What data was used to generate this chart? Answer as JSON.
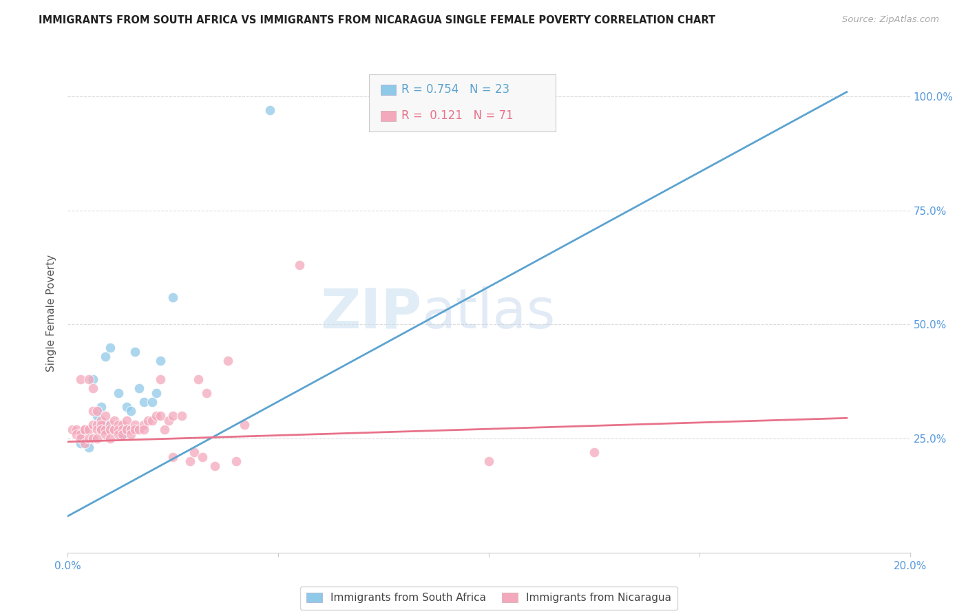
{
  "title": "IMMIGRANTS FROM SOUTH AFRICA VS IMMIGRANTS FROM NICARAGUA SINGLE FEMALE POVERTY CORRELATION CHART",
  "source": "Source: ZipAtlas.com",
  "ylabel": "Single Female Poverty",
  "xlim": [
    0.0,
    0.2
  ],
  "ylim": [
    0.0,
    1.05
  ],
  "xtick_labels": [
    "0.0%",
    "",
    "",
    "",
    "20.0%"
  ],
  "xtick_vals": [
    0.0,
    0.05,
    0.1,
    0.15,
    0.2
  ],
  "ytick_labels_right": [
    "100.0%",
    "75.0%",
    "50.0%",
    "25.0%"
  ],
  "ytick_vals": [
    1.0,
    0.75,
    0.5,
    0.25
  ],
  "watermark_zip": "ZIP",
  "watermark_atlas": "atlas",
  "blue_R": "0.754",
  "blue_N": "23",
  "pink_R": "0.121",
  "pink_N": "71",
  "legend_label_blue": "Immigrants from South Africa",
  "legend_label_pink": "Immigrants from Nicaragua",
  "blue_color": "#8fc9e8",
  "pink_color": "#f4a8bc",
  "blue_line_color": "#5ba3d0",
  "pink_line_color": "#e8728a",
  "title_color": "#222222",
  "axis_label_color": "#5599dd",
  "source_color": "#aaaaaa",
  "ylabel_color": "#555555",
  "blue_scatter_x": [
    0.003,
    0.005,
    0.006,
    0.007,
    0.008,
    0.009,
    0.009,
    0.01,
    0.011,
    0.012,
    0.012,
    0.013,
    0.013,
    0.014,
    0.015,
    0.016,
    0.017,
    0.018,
    0.02,
    0.021,
    0.022,
    0.025,
    0.048
  ],
  "blue_scatter_y": [
    0.24,
    0.23,
    0.38,
    0.3,
    0.32,
    0.28,
    0.43,
    0.45,
    0.27,
    0.27,
    0.35,
    0.27,
    0.26,
    0.32,
    0.31,
    0.44,
    0.36,
    0.33,
    0.33,
    0.35,
    0.42,
    0.56,
    0.97
  ],
  "pink_scatter_x": [
    0.001,
    0.002,
    0.002,
    0.003,
    0.003,
    0.003,
    0.004,
    0.004,
    0.004,
    0.005,
    0.005,
    0.005,
    0.006,
    0.006,
    0.006,
    0.006,
    0.007,
    0.007,
    0.007,
    0.007,
    0.008,
    0.008,
    0.008,
    0.008,
    0.009,
    0.009,
    0.009,
    0.01,
    0.01,
    0.01,
    0.011,
    0.011,
    0.011,
    0.012,
    0.012,
    0.012,
    0.013,
    0.013,
    0.013,
    0.014,
    0.014,
    0.014,
    0.015,
    0.015,
    0.016,
    0.016,
    0.017,
    0.018,
    0.018,
    0.019,
    0.02,
    0.021,
    0.022,
    0.022,
    0.023,
    0.024,
    0.025,
    0.025,
    0.027,
    0.029,
    0.03,
    0.031,
    0.032,
    0.033,
    0.035,
    0.038,
    0.04,
    0.042,
    0.055,
    0.1,
    0.125
  ],
  "pink_scatter_y": [
    0.27,
    0.27,
    0.26,
    0.26,
    0.25,
    0.38,
    0.27,
    0.27,
    0.24,
    0.38,
    0.27,
    0.25,
    0.36,
    0.31,
    0.28,
    0.25,
    0.31,
    0.28,
    0.27,
    0.25,
    0.29,
    0.28,
    0.27,
    0.27,
    0.3,
    0.27,
    0.26,
    0.28,
    0.27,
    0.25,
    0.29,
    0.27,
    0.27,
    0.28,
    0.27,
    0.26,
    0.28,
    0.27,
    0.26,
    0.29,
    0.27,
    0.27,
    0.27,
    0.26,
    0.28,
    0.27,
    0.27,
    0.28,
    0.27,
    0.29,
    0.29,
    0.3,
    0.38,
    0.3,
    0.27,
    0.29,
    0.3,
    0.21,
    0.3,
    0.2,
    0.22,
    0.38,
    0.21,
    0.35,
    0.19,
    0.42,
    0.2,
    0.28,
    0.63,
    0.2,
    0.22
  ],
  "blue_line_x": [
    0.0,
    0.185
  ],
  "blue_line_y": [
    0.08,
    1.01
  ],
  "pink_line_x": [
    0.0,
    0.185
  ],
  "pink_line_y": [
    0.243,
    0.295
  ],
  "bg_color": "#ffffff",
  "grid_color": "#dddddd",
  "legend_box_color": "#f8f8f8",
  "legend_border_color": "#cccccc"
}
